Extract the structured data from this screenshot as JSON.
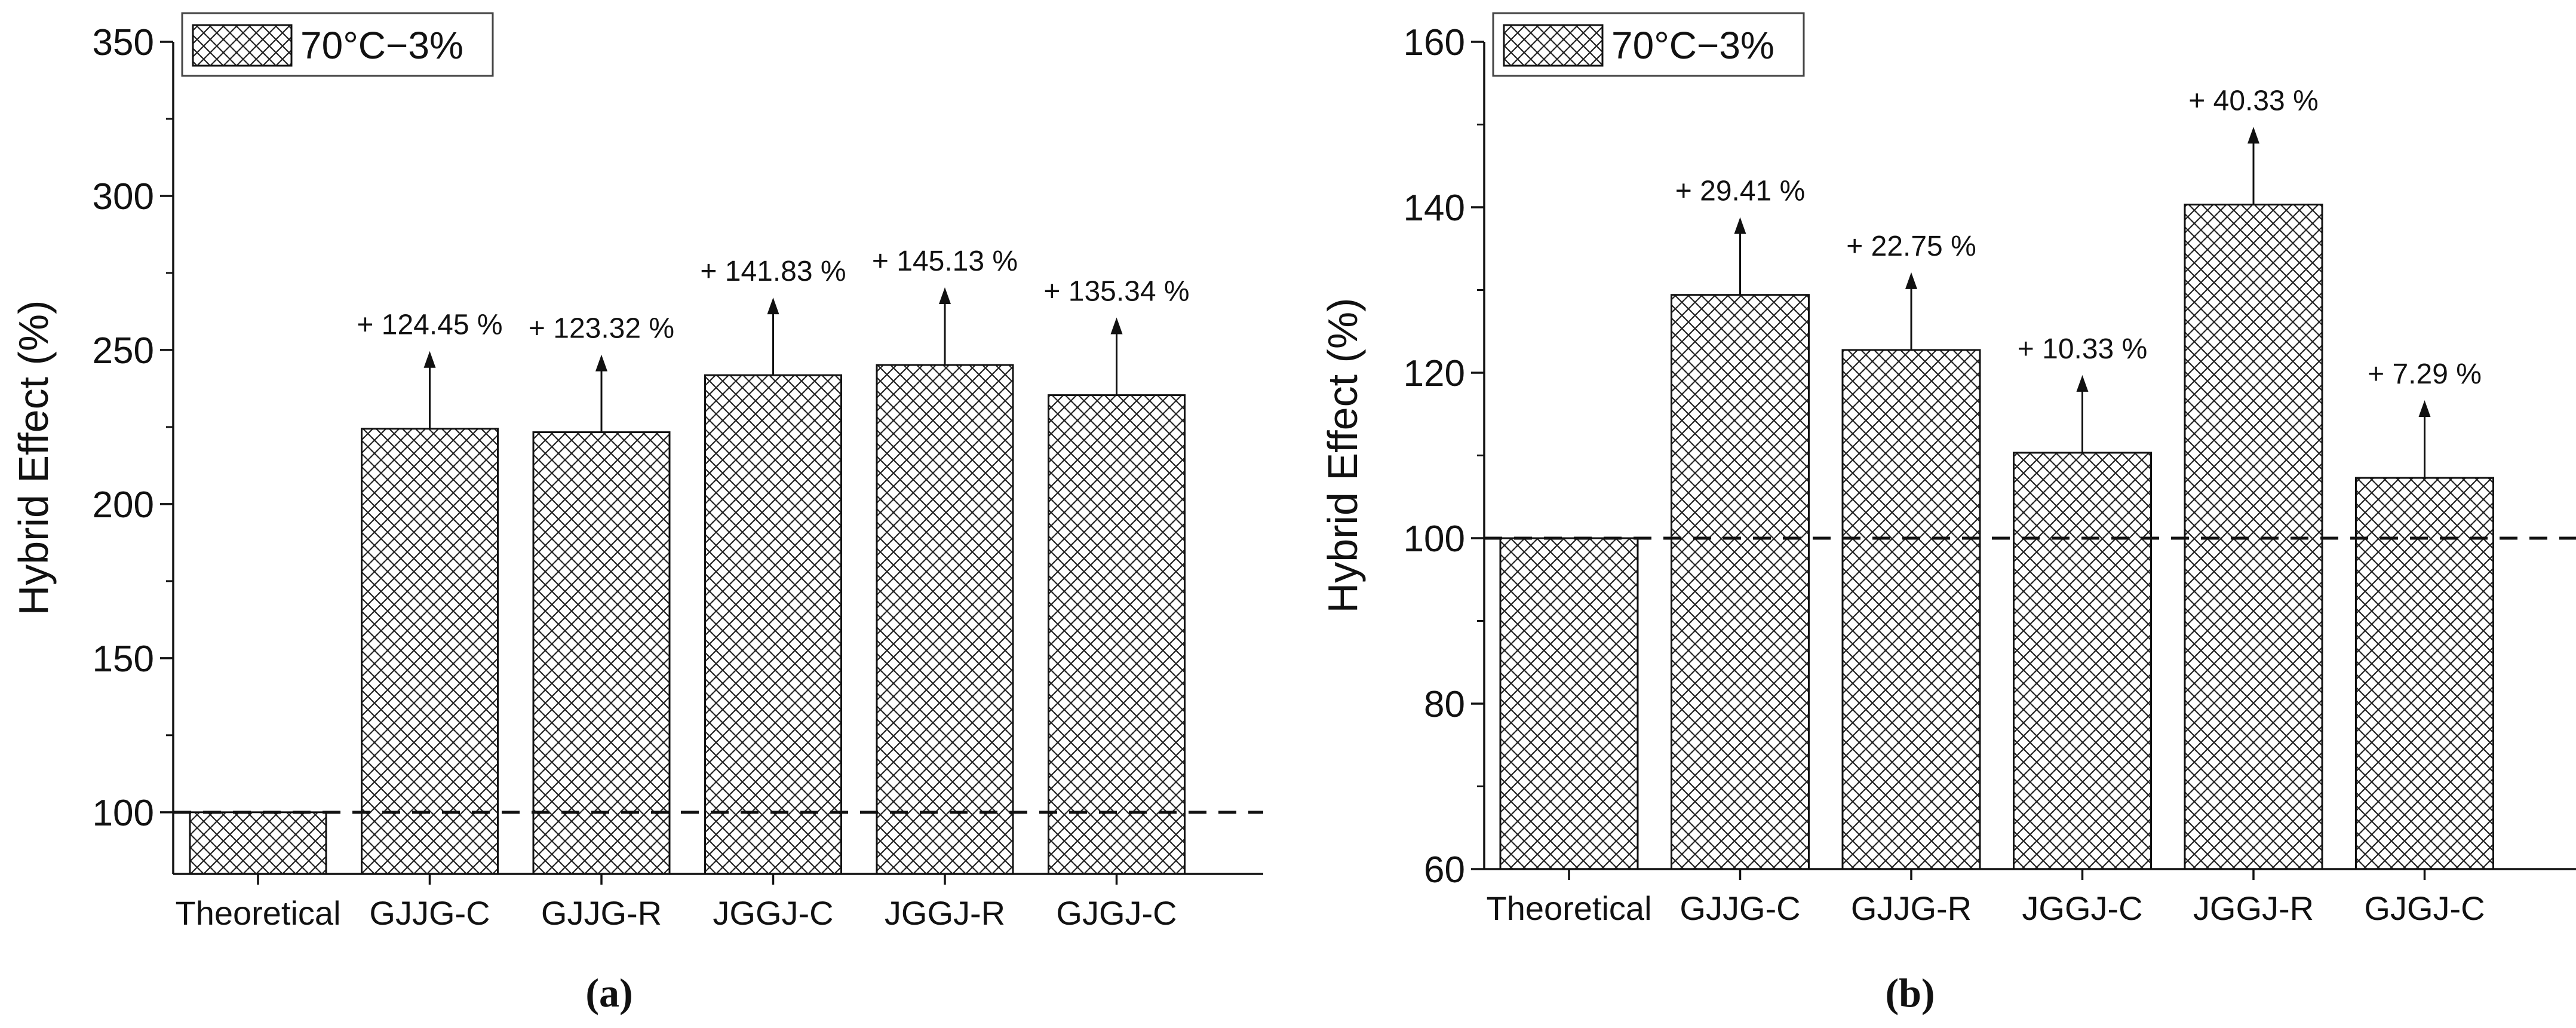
{
  "legend_label": "70°C−3%",
  "colors": {
    "bar_fill": "#ffffff",
    "hatch": "#222222",
    "axis": "#111111"
  },
  "chart_data": [
    {
      "panel": "(a)",
      "type": "bar",
      "ylabel": "Hybrid Effect (%)",
      "xlabel": "",
      "ylim": [
        80,
        350
      ],
      "yticks": [
        100,
        150,
        200,
        250,
        300,
        350
      ],
      "categories": [
        "Theoretical",
        "GJJG-C",
        "GJJG-R",
        "JGGJ-C",
        "JGGJ-R",
        "GJGJ-C"
      ],
      "values": [
        100,
        224.45,
        223.32,
        241.83,
        245.13,
        235.34
      ],
      "annotations": [
        "",
        "+ 124.45 %",
        "+ 123.32 %",
        "+ 141.83 %",
        "+ 145.13 %",
        "+ 135.34 %"
      ],
      "reference_line": 100,
      "legend": "top-left"
    },
    {
      "panel": "(b)",
      "type": "bar",
      "ylabel": "Hybrid Effect (%)",
      "xlabel": "",
      "ylim": [
        60,
        160
      ],
      "yticks": [
        60,
        80,
        100,
        120,
        140,
        160
      ],
      "categories": [
        "Theoretical",
        "GJJG-C",
        "GJJG-R",
        "JGGJ-C",
        "JGGJ-R",
        "GJGJ-C"
      ],
      "values": [
        100,
        129.41,
        122.75,
        110.33,
        140.33,
        107.29
      ],
      "annotations": [
        "",
        "+ 29.41 %",
        "+ 22.75 %",
        "+ 10.33 %",
        "+ 40.33 %",
        "+ 7.29 %"
      ],
      "reference_line": 100,
      "legend": "top-left"
    }
  ]
}
